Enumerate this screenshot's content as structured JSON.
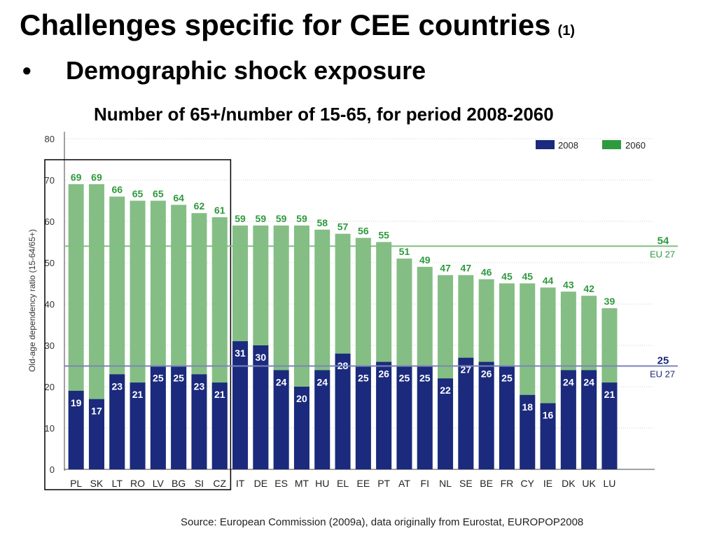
{
  "slide": {
    "title": "Challenges specific for CEE countries",
    "title_note": "(1)",
    "bullet_symbol": "•",
    "bullet": "Demographic shock exposure",
    "subtitle": "Number of 65+/number of 15-65, for period 2008-2060",
    "source": "Source: European Commission (2009a), data originally from Eurostat, EUROPOP2008"
  },
  "colors": {
    "s2008": "#1b2a7c",
    "s2060": "#84be84",
    "label2060": "#2e9a3e",
    "label2008": "#ffffff",
    "eu2060_line": "#7fbf7f",
    "eu2008_line": "#7a86b8",
    "eu2060_text": "#2e9a3e",
    "eu2008_text": "#1b2a7c"
  },
  "chart_data": {
    "type": "bar",
    "ylabel": "Old-age dependency ratio (15-64/65+)",
    "ylim": [
      0,
      80
    ],
    "yticks": [
      0,
      10,
      20,
      30,
      40,
      50,
      60,
      70,
      80
    ],
    "grid": true,
    "legend_position": "top-right",
    "categories": [
      "PL",
      "SK",
      "LT",
      "RO",
      "LV",
      "BG",
      "SI",
      "CZ",
      "IT",
      "DE",
      "ES",
      "MT",
      "HU",
      "EL",
      "EE",
      "PT",
      "AT",
      "FI",
      "NL",
      "SE",
      "BE",
      "FR",
      "CY",
      "IE",
      "DK",
      "UK",
      "LU"
    ],
    "highlight_group": [
      "PL",
      "SK",
      "LT",
      "RO",
      "LV",
      "BG",
      "SI",
      "CZ"
    ],
    "series": [
      {
        "name": "2008",
        "values": [
          19,
          17,
          23,
          21,
          25,
          25,
          23,
          21,
          31,
          30,
          24,
          20,
          24,
          28,
          25,
          26,
          25,
          25,
          22,
          27,
          26,
          25,
          18,
          16,
          24,
          24,
          21
        ]
      },
      {
        "name": "2060",
        "values": [
          69,
          69,
          66,
          65,
          65,
          64,
          62,
          61,
          59,
          59,
          59,
          59,
          58,
          57,
          56,
          55,
          51,
          49,
          47,
          47,
          46,
          45,
          45,
          44,
          43,
          42,
          39
        ]
      }
    ],
    "reference_lines": [
      {
        "series": "2060",
        "value": 54,
        "value_label": "54",
        "label": "EU 27"
      },
      {
        "series": "2008",
        "value": 25,
        "value_label": "25",
        "label": "EU 27"
      }
    ]
  }
}
